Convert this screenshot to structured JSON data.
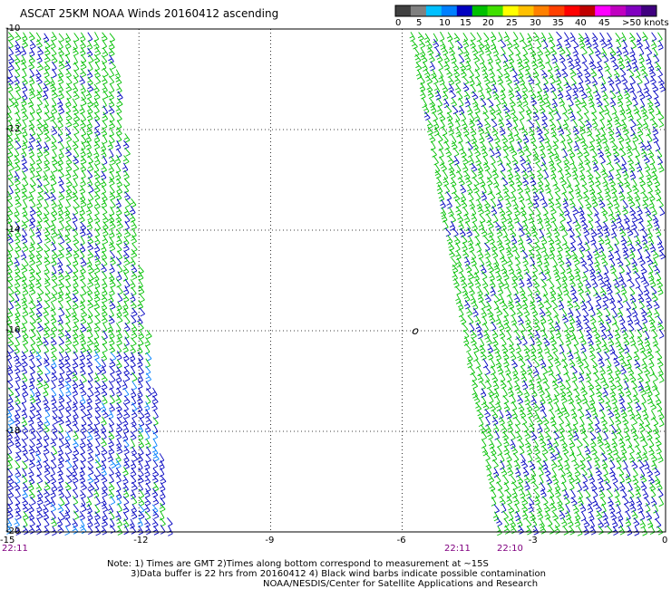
{
  "title": "ASCAT 25KM NOAA Winds 20160412 ascending",
  "colorbar": {
    "labels": [
      "0",
      "5",
      "10",
      "15",
      "20",
      "25",
      "30",
      "35",
      "40",
      "45",
      ">50 knots"
    ],
    "colors": [
      "#404040",
      "#808080",
      "#00c0ff",
      "#0080ff",
      "#0000c0",
      "#00c000",
      "#40e000",
      "#ffff00",
      "#ffc000",
      "#ff8000",
      "#ff4000",
      "#ff0000",
      "#c00000",
      "#ff00ff",
      "#c000c0",
      "#8000c0",
      "#400080"
    ]
  },
  "chart_data": {
    "type": "scatter",
    "xlabel": "",
    "ylabel": "",
    "xlim": [
      -15,
      0
    ],
    "ylim": [
      -20,
      -10
    ],
    "xticks": [
      "-15",
      "-12",
      "-9",
      "-6",
      "-3",
      "0"
    ],
    "yticks": [
      "-10",
      "-12",
      "-14",
      "-16",
      "-18",
      "-20"
    ],
    "grid": true,
    "swaths": [
      {
        "lon_top_left": -15,
        "lon_top_right": -12.6,
        "lon_bottom_left": -15,
        "lon_bottom_right": -11.3,
        "dominant_speed_knots": "15-25"
      },
      {
        "lon_top_left": -5.8,
        "lon_top_right": 0,
        "lon_bottom_left": -3.8,
        "lon_bottom_right": 0,
        "dominant_speed_knots": "15-25"
      }
    ],
    "annotation": {
      "lon": -5.7,
      "lat": -16.0,
      "shape": "island-outline"
    }
  },
  "time_labels": {
    "left": "22:11",
    "mid": "22:11",
    "right": "22:10"
  },
  "notes": {
    "line1": "Note: 1) Times are GMT 2)Times along bottom correspond to measurement at ~15S",
    "line2": "3)Data buffer is 22 hrs from 20160412 4) Black wind barbs indicate possible contamination",
    "line3": "NOAA/NESDIS/Center for Satellite Applications and Research"
  }
}
